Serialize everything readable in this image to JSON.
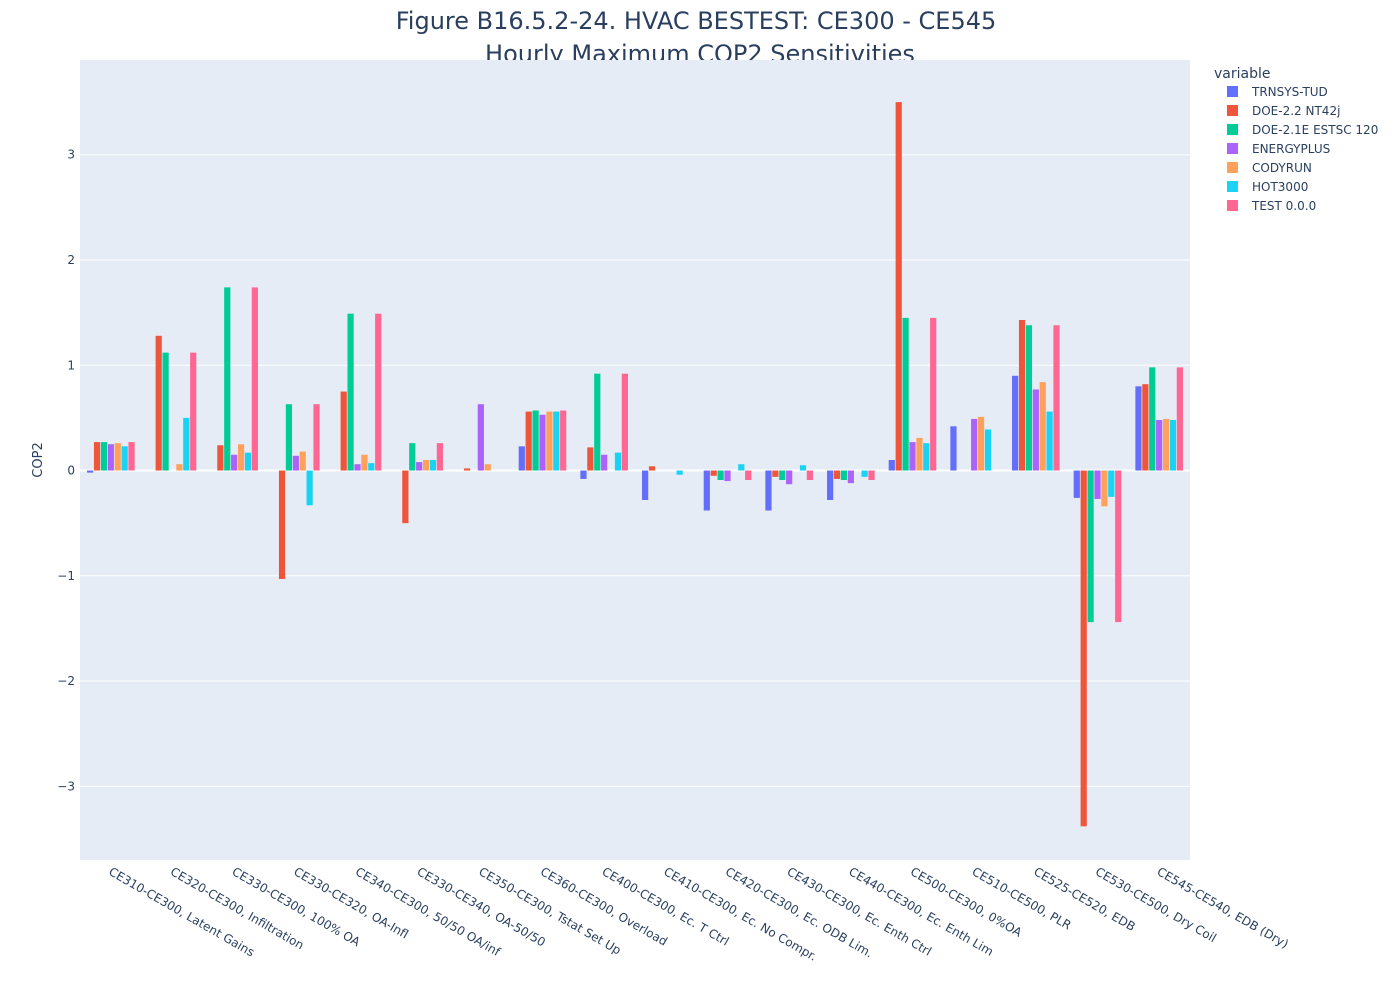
{
  "chart_data": {
    "type": "bar",
    "title_line1": "Figure B16.5.2-24. HVAC BESTEST: CE300 - CE545",
    "title_line2": "Hourly Maximum COP2 Sensitivities",
    "ylabel": "COP2",
    "ylim": [
      -3.7,
      3.9
    ],
    "yticks": [
      -3,
      -2,
      -1,
      0,
      1,
      2,
      3
    ],
    "ytick_labels": [
      "−3",
      "−2",
      "−1",
      "0",
      "1",
      "2",
      "3"
    ],
    "legend_title": "variable",
    "legend_position": "top-right",
    "grid": true,
    "categories": [
      "CE310-CE300, Latent Gains",
      "CE320-CE300, Infiltration",
      "CE330-CE300, 100% OA",
      "CE330-CE320, OA-Infl",
      "CE340-CE300, 50/50 OA/inf",
      "CE330-CE340, OA-50/50",
      "CE350-CE300, Tstat Set Up",
      "CE360-CE300, Overload",
      "CE400-CE300, Ec. T Ctrl",
      "CE410-CE300, Ec. No Compr.",
      "CE420-CE300, Ec. ODB Lim.",
      "CE430-CE300, Ec. Enth Ctrl",
      "CE440-CE300, Ec. Enth Lim",
      "CE500-CE300, 0%OA",
      "CE510-CE500, PLR",
      "CE525-CE520, EDB",
      "CE530-CE500, Dry Coil",
      "CE545-CE540, EDB (Dry)"
    ],
    "series": [
      {
        "name": "TRNSYS-TUD",
        "color": "#636efa",
        "values": [
          -0.02,
          0,
          0,
          0,
          0,
          0,
          0,
          0.23,
          -0.08,
          -0.28,
          -0.38,
          -0.38,
          -0.28,
          0.1,
          0.42,
          0.9,
          -0.26,
          0.8
        ]
      },
      {
        "name": "DOE-2.2 NT42j",
        "color": "#ef553b",
        "values": [
          0.27,
          1.28,
          0.24,
          -1.03,
          0.75,
          -0.5,
          0.02,
          0.56,
          0.22,
          0.04,
          -0.05,
          -0.06,
          -0.08,
          3.5,
          0,
          1.43,
          -3.38,
          0.82
        ]
      },
      {
        "name": "DOE-2.1E ESTSC 120",
        "color": "#00cc96",
        "values": [
          0.27,
          1.12,
          1.74,
          0.63,
          1.49,
          0.26,
          0,
          0.57,
          0.92,
          0,
          -0.09,
          -0.09,
          -0.09,
          1.45,
          0,
          1.38,
          -1.44,
          0.98
        ]
      },
      {
        "name": "ENERGYPLUS",
        "color": "#ab63fa",
        "values": [
          0.25,
          0,
          0.15,
          0.14,
          0.06,
          0.08,
          0.63,
          0.53,
          0.15,
          0,
          -0.1,
          -0.13,
          -0.12,
          0.27,
          0.49,
          0.77,
          -0.27,
          0.48
        ]
      },
      {
        "name": "CODYRUN",
        "color": "#ffa15a",
        "values": [
          0.26,
          0.06,
          0.25,
          0.18,
          0.15,
          0.1,
          0.06,
          0.56,
          0,
          0,
          0,
          0,
          0,
          0.31,
          0.51,
          0.84,
          -0.34,
          0.49
        ]
      },
      {
        "name": "HOT3000",
        "color": "#19d3f3",
        "values": [
          0.23,
          0.5,
          0.17,
          -0.33,
          0.07,
          0.1,
          0,
          0.56,
          0.17,
          -0.04,
          0.06,
          0.05,
          -0.06,
          0.26,
          0.39,
          0.56,
          -0.25,
          0.48
        ]
      },
      {
        "name": "TEST 0.0.0",
        "color": "#ff6692",
        "values": [
          0.27,
          1.12,
          1.74,
          0.63,
          1.49,
          0.26,
          0,
          0.57,
          0.92,
          0,
          -0.09,
          -0.09,
          -0.09,
          1.45,
          0,
          1.38,
          -1.44,
          0.98
        ]
      }
    ]
  }
}
